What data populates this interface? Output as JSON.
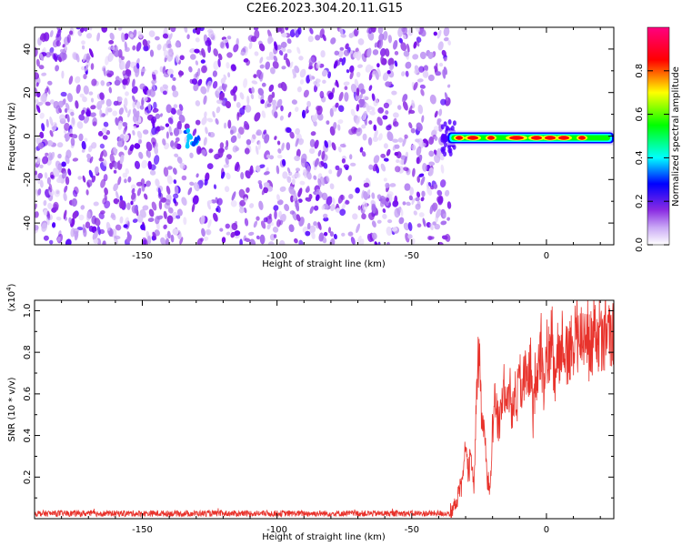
{
  "title": "C2E6.2023.304.20.11.G15",
  "chart_data": [
    {
      "type": "heatmap",
      "title": "C2E6.2023.304.20.11.G15",
      "xlabel": "Height of straight line (km)",
      "ylabel": "Frequency (Hz)",
      "xlim": [
        -190,
        25
      ],
      "ylim": [
        -50,
        50
      ],
      "x_ticks": [
        -150,
        -100,
        -50,
        0
      ],
      "x_tick_labels": [
        "-150",
        "-100",
        "-50",
        "0"
      ],
      "y_ticks": [
        -40,
        -20,
        0,
        20,
        40
      ],
      "y_tick_labels": [
        "-40",
        "-20",
        "0",
        "20",
        "40"
      ],
      "colorbar": {
        "label": "Normalized spectral amplitude",
        "range": [
          0,
          1
        ],
        "ticks": [
          0.0,
          0.2,
          0.4,
          0.6,
          0.8
        ],
        "tick_labels": [
          "0.0",
          "0.2",
          "0.4",
          "0.6",
          "0.8"
        ],
        "colormap": [
          "#ffffff",
          "#8a2be2",
          "#0000ff",
          "#00ffff",
          "#00ff00",
          "#ffff00",
          "#ff0000",
          "#ff0080"
        ]
      },
      "regions": [
        {
          "x_range": [
            -190,
            -36
          ],
          "y_range": [
            -50,
            50
          ],
          "amplitude_approx": [
            0.0,
            0.15
          ],
          "description": "noise"
        },
        {
          "x_range": [
            -134,
            -129
          ],
          "y_range": [
            -6,
            4
          ],
          "amplitude_approx": [
            0.15,
            0.3
          ]
        },
        {
          "x_range": [
            -36,
            25
          ],
          "y_range": [
            -3,
            2
          ],
          "amplitude_approx": [
            0.3,
            1.0
          ]
        }
      ],
      "grid": false
    },
    {
      "type": "line",
      "xlabel": "Height of straight line (km)",
      "ylabel": "SNR (10 * v/v)",
      "y_multiplier": "(x10^4)",
      "xlim": [
        -190,
        25
      ],
      "ylim": [
        0,
        1.05
      ],
      "x_ticks": [
        -150,
        -100,
        -50,
        0
      ],
      "x_tick_labels": [
        "-150",
        "-100",
        "-50",
        "0"
      ],
      "y_ticks": [
        0.2,
        0.4,
        0.6,
        0.8,
        1.0
      ],
      "y_tick_labels": [
        "0.2",
        "0.4",
        "0.6",
        "0.8",
        "1.0"
      ],
      "color": "#e8322b",
      "series": [
        {
          "x": [
            -190,
            -175,
            -160,
            -145,
            -130,
            -115,
            -100,
            -85,
            -70,
            -55,
            -40,
            -35,
            -33,
            -31,
            -30,
            -29,
            -28,
            -27,
            -26,
            -25,
            -24,
            -23,
            -22,
            -21,
            -20,
            -19,
            -18,
            -17,
            -16,
            -15,
            -14,
            -13,
            -12,
            -11,
            -10,
            -9,
            -8,
            -7,
            -6,
            -5,
            -4,
            -3,
            -2,
            -1,
            0,
            1,
            2,
            3,
            4,
            5,
            6,
            7,
            8,
            9,
            10,
            11,
            12,
            13,
            14,
            15,
            16,
            17,
            18,
            19,
            20,
            21,
            22,
            23,
            24,
            25
          ],
          "y": [
            0.015,
            0.02,
            0.018,
            0.02,
            0.022,
            0.02,
            0.018,
            0.02,
            0.018,
            0.02,
            0.02,
            0.03,
            0.1,
            0.2,
            0.35,
            0.25,
            0.3,
            0.15,
            0.55,
            0.85,
            0.4,
            0.45,
            0.2,
            0.15,
            0.45,
            0.6,
            0.45,
            0.5,
            0.65,
            0.55,
            0.7,
            0.5,
            0.6,
            0.55,
            0.75,
            0.6,
            0.7,
            0.65,
            0.75,
            0.5,
            0.7,
            0.75,
            0.85,
            0.65,
            0.8,
            0.75,
            0.9,
            0.7,
            0.85,
            0.75,
            0.9,
            0.8,
            0.75,
            0.85,
            0.7,
            1.03,
            0.8,
            0.9,
            0.85,
            0.95,
            0.8,
            0.88,
            0.95,
            0.85,
            0.9,
            0.8,
            0.95,
            0.9,
            0.85,
            0.9
          ]
        }
      ],
      "grid": false
    }
  ]
}
